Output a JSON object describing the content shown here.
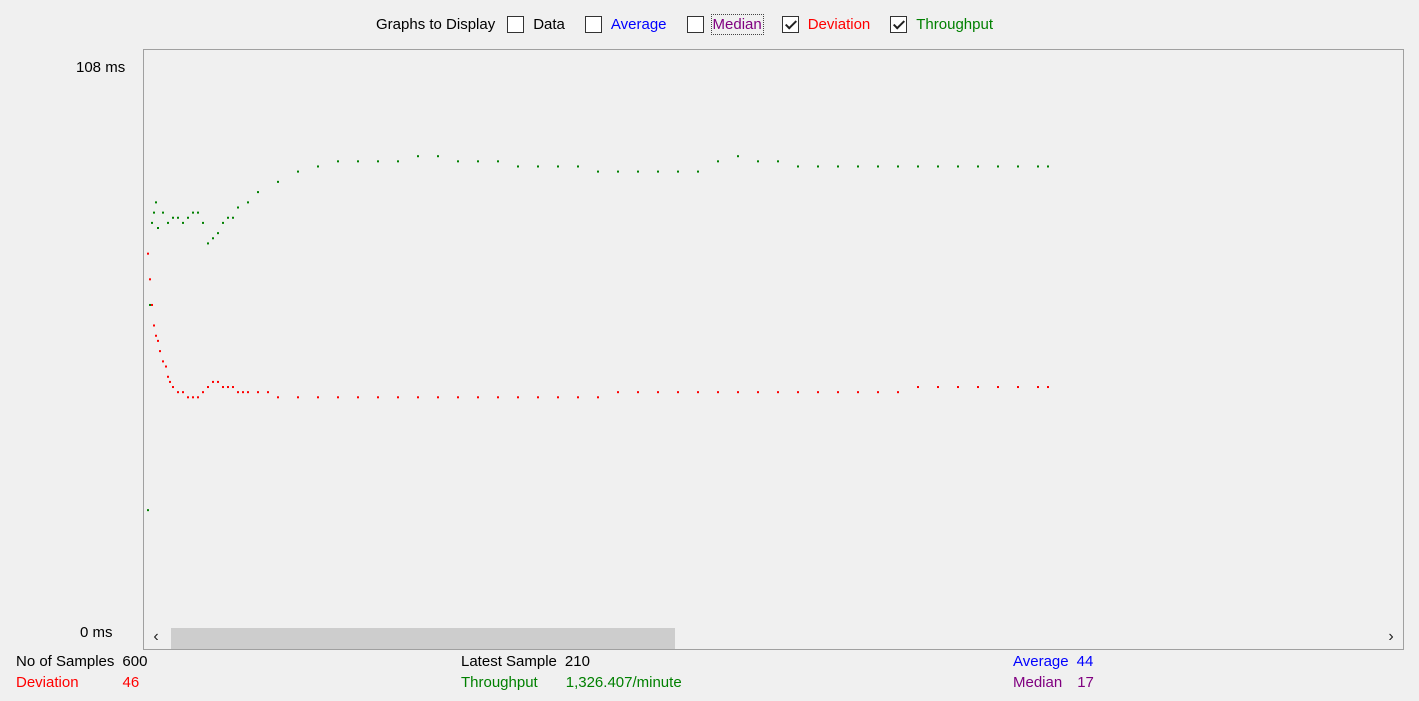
{
  "toolbar": {
    "title": "Graphs to Display",
    "options": [
      {
        "label": "Data",
        "checked": false,
        "color": "#000000"
      },
      {
        "label": "Average",
        "checked": false,
        "color": "#0000ff"
      },
      {
        "label": "Median",
        "checked": false,
        "color": "#800080"
      },
      {
        "label": "Deviation",
        "checked": true,
        "color": "#ff0000"
      },
      {
        "label": "Throughput",
        "checked": true,
        "color": "#008000"
      }
    ]
  },
  "axis": {
    "max_label": "108  ms",
    "min_label": "0  ms",
    "max": 108,
    "min": 0
  },
  "stats": {
    "samples_label": "No of Samples",
    "samples_value": "600",
    "deviation_label": "Deviation",
    "deviation_value": "46",
    "latest_label": "Latest Sample",
    "latest_value": "210",
    "throughput_label": "Throughput",
    "throughput_value": "1,326.407/minute",
    "average_label": "Average",
    "average_value": "44",
    "median_label": "Median",
    "median_value": "17"
  },
  "chart_data": {
    "type": "scatter",
    "ylim": [
      0,
      108
    ],
    "yunit": "ms",
    "series": [
      {
        "name": "Throughput",
        "color": "#008000",
        "x": [
          0,
          2,
          4,
          6,
          8,
          10,
          15,
          20,
          25,
          30,
          35,
          40,
          45,
          50,
          55,
          60,
          65,
          70,
          75,
          80,
          85,
          90,
          100,
          110,
          130,
          150,
          170,
          190,
          210,
          230,
          250,
          270,
          290,
          310,
          330,
          350,
          370,
          390,
          410,
          430,
          450,
          470,
          490,
          510,
          530,
          550,
          570,
          590,
          610,
          630,
          650,
          670,
          690,
          710,
          730,
          750,
          770,
          790,
          810,
          830,
          850,
          870,
          890,
          900
        ],
        "y": [
          22,
          62,
          78,
          80,
          82,
          77,
          80,
          78,
          79,
          79,
          78,
          79,
          80,
          80,
          78,
          74,
          75,
          76,
          78,
          79,
          79,
          81,
          82,
          84,
          86,
          88,
          89,
          90,
          90,
          90,
          90,
          91,
          91,
          90,
          90,
          90,
          89,
          89,
          89,
          89,
          88,
          88,
          88,
          88,
          88,
          88,
          90,
          91,
          90,
          90,
          89,
          89,
          89,
          89,
          89,
          89,
          89,
          89,
          89,
          89,
          89,
          89,
          89,
          89
        ]
      },
      {
        "name": "Deviation",
        "color": "#ff0000",
        "x": [
          0,
          2,
          4,
          6,
          8,
          10,
          12,
          15,
          18,
          20,
          22,
          25,
          30,
          35,
          40,
          45,
          50,
          55,
          60,
          65,
          70,
          75,
          80,
          85,
          90,
          95,
          100,
          110,
          120,
          130,
          150,
          170,
          190,
          210,
          230,
          250,
          270,
          290,
          310,
          330,
          350,
          370,
          390,
          410,
          430,
          450,
          470,
          490,
          510,
          530,
          550,
          570,
          590,
          610,
          630,
          650,
          670,
          690,
          710,
          730,
          750,
          770,
          790,
          810,
          830,
          850,
          870,
          890,
          900
        ],
        "y": [
          72,
          67,
          62,
          58,
          56,
          55,
          53,
          51,
          50,
          48,
          47,
          46,
          45,
          45,
          44,
          44,
          44,
          45,
          46,
          47,
          47,
          46,
          46,
          46,
          45,
          45,
          45,
          45,
          45,
          44,
          44,
          44,
          44,
          44,
          44,
          44,
          44,
          44,
          44,
          44,
          44,
          44,
          44,
          44,
          44,
          44,
          45,
          45,
          45,
          45,
          45,
          45,
          45,
          45,
          45,
          45,
          45,
          45,
          45,
          45,
          45,
          46,
          46,
          46,
          46,
          46,
          46,
          46,
          46
        ]
      }
    ]
  }
}
